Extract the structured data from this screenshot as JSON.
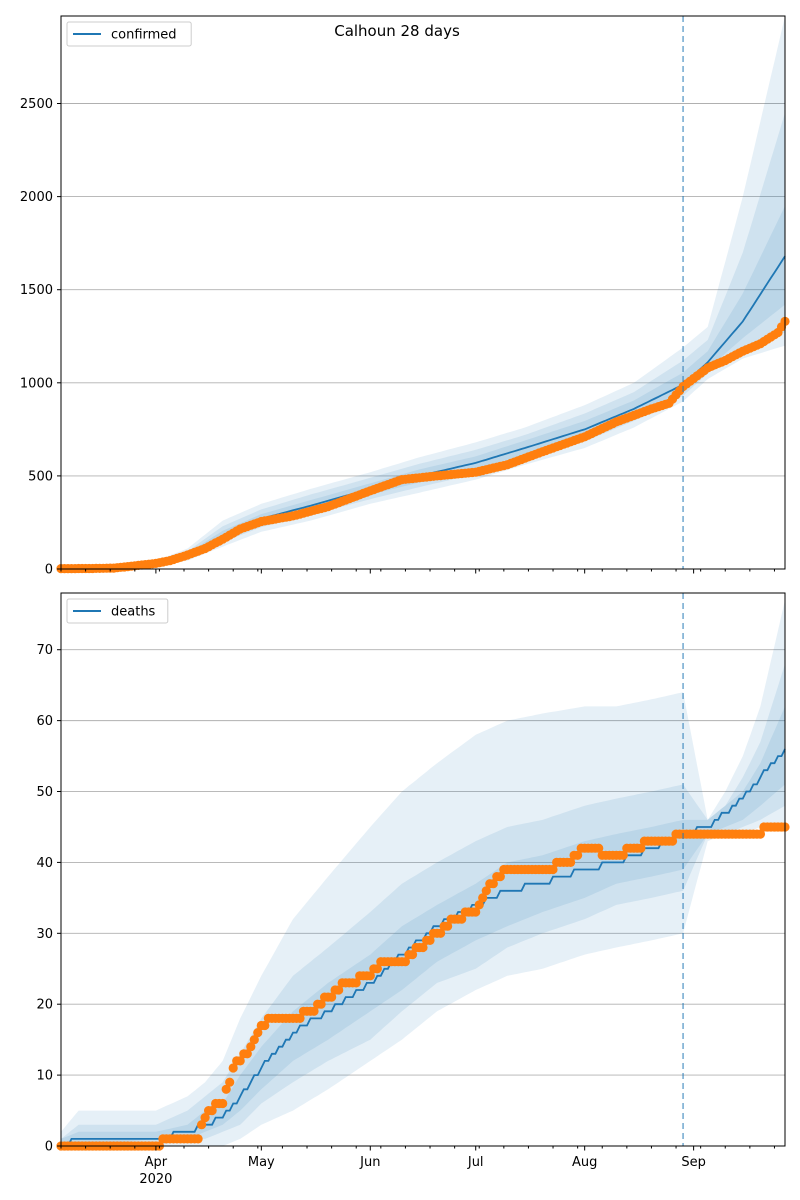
{
  "figure": {
    "title": "Calhoun 28 days"
  },
  "colors": {
    "model_line": "#1f77b4",
    "band": "#1f77b4",
    "observed": "#ff7f0e",
    "grid": "#b0b0b0",
    "forecast_marker": "#1f77b4"
  },
  "x_axis": {
    "start": "2020-03-05",
    "end": "2020-09-27",
    "forecast_start": "2020-08-29",
    "month_ticks": [
      {
        "date": "2020-04-01",
        "label": "Apr",
        "sublabel": "2020"
      },
      {
        "date": "2020-05-01",
        "label": "May",
        "sublabel": ""
      },
      {
        "date": "2020-06-01",
        "label": "Jun",
        "sublabel": ""
      },
      {
        "date": "2020-07-01",
        "label": "Jul",
        "sublabel": ""
      },
      {
        "date": "2020-08-01",
        "label": "Aug",
        "sublabel": ""
      },
      {
        "date": "2020-09-01",
        "label": "Sep",
        "sublabel": ""
      }
    ]
  },
  "chart_data": [
    {
      "type": "line",
      "title": "Calhoun 28 days",
      "legend": "confirmed",
      "legend_position": "top-left",
      "grid": "horizontal",
      "ylim": [
        0,
        2970
      ],
      "yticks": [
        0,
        500,
        1000,
        1500,
        2000,
        2500
      ],
      "model": {
        "x": [
          "2020-03-05",
          "2020-03-20",
          "2020-03-25",
          "2020-04-01",
          "2020-04-10",
          "2020-04-20",
          "2020-05-01",
          "2020-05-15",
          "2020-06-01",
          "2020-06-15",
          "2020-07-01",
          "2020-07-15",
          "2020-08-01",
          "2020-08-15",
          "2020-08-29",
          "2020-09-05",
          "2020-09-15",
          "2020-09-27"
        ],
        "y": [
          0,
          2,
          5,
          25,
          75,
          180,
          270,
          340,
          430,
          500,
          570,
          650,
          750,
          860,
          990,
          1110,
          1330,
          1680
        ]
      },
      "bands": [
        {
          "level": "outer",
          "lower": [
            0,
            0,
            0,
            10,
            45,
            120,
            200,
            260,
            350,
            410,
            480,
            560,
            650,
            760,
            900,
            1020,
            1130,
            1200
          ],
          "upper": [
            5,
            8,
            15,
            45,
            110,
            260,
            350,
            430,
            520,
            600,
            680,
            760,
            880,
            1000,
            1190,
            1300,
            2000,
            2970
          ]
        },
        {
          "level": "middle",
          "lower": [
            0,
            1,
            2,
            15,
            55,
            145,
            225,
            290,
            375,
            440,
            510,
            590,
            685,
            795,
            930,
            1050,
            1180,
            1270
          ],
          "upper": [
            3,
            5,
            10,
            38,
            95,
            230,
            320,
            400,
            490,
            565,
            640,
            720,
            835,
            950,
            1120,
            1230,
            1700,
            2450
          ]
        },
        {
          "level": "inner",
          "lower": [
            0,
            1,
            3,
            19,
            65,
            160,
            245,
            310,
            400,
            465,
            535,
            615,
            710,
            820,
            955,
            1075,
            1240,
            1420
          ],
          "upper": [
            2,
            4,
            8,
            32,
            85,
            205,
            295,
            370,
            460,
            535,
            605,
            690,
            795,
            905,
            1055,
            1170,
            1480,
            1950
          ]
        }
      ],
      "observed": {
        "x": [
          "2020-03-05",
          "2020-03-15",
          "2020-03-20",
          "2020-03-25",
          "2020-04-01",
          "2020-04-05",
          "2020-04-10",
          "2020-04-15",
          "2020-04-20",
          "2020-04-25",
          "2020-05-01",
          "2020-05-10",
          "2020-05-20",
          "2020-06-01",
          "2020-06-10",
          "2020-06-20",
          "2020-07-01",
          "2020-07-10",
          "2020-07-20",
          "2020-08-01",
          "2020-08-10",
          "2020-08-20",
          "2020-08-25",
          "2020-08-29",
          "2020-09-05",
          "2020-09-10",
          "2020-09-15",
          "2020-09-20",
          "2020-09-25",
          "2020-09-27"
        ],
        "y": [
          2,
          3,
          5,
          15,
          30,
          45,
          75,
          110,
          160,
          215,
          255,
          285,
          335,
          420,
          480,
          500,
          520,
          560,
          630,
          710,
          790,
          860,
          890,
          980,
          1080,
          1120,
          1170,
          1210,
          1270,
          1330
        ]
      }
    },
    {
      "type": "line",
      "legend": "deaths",
      "legend_position": "top-left",
      "grid": "horizontal",
      "ylim": [
        0,
        78
      ],
      "yticks": [
        0,
        10,
        20,
        30,
        40,
        50,
        60,
        70
      ],
      "model": {
        "x": [
          "2020-03-05",
          "2020-03-10",
          "2020-04-01",
          "2020-04-10",
          "2020-04-15",
          "2020-04-20",
          "2020-04-25",
          "2020-05-01",
          "2020-05-10",
          "2020-05-20",
          "2020-06-01",
          "2020-06-10",
          "2020-06-20",
          "2020-07-01",
          "2020-07-10",
          "2020-07-20",
          "2020-08-01",
          "2020-08-10",
          "2020-08-20",
          "2020-08-29",
          "2020-09-05",
          "2020-09-10",
          "2020-09-15",
          "2020-09-20",
          "2020-09-27"
        ],
        "y": [
          0,
          1,
          1,
          2,
          3,
          4,
          7,
          11,
          16,
          19,
          23,
          27,
          31,
          34,
          36,
          37,
          39,
          40,
          42,
          44,
          45,
          47,
          49,
          52,
          56
        ]
      },
      "bands": [
        {
          "level": "outer",
          "lower": [
            0,
            0,
            0,
            0,
            0,
            0,
            1,
            3,
            5,
            8,
            12,
            15,
            19,
            22,
            24,
            25,
            27,
            28,
            29,
            30,
            43,
            44,
            44,
            45,
            45
          ],
          "upper": [
            2,
            5,
            5,
            7,
            9,
            12,
            18,
            24,
            32,
            38,
            45,
            50,
            54,
            58,
            60,
            61,
            62,
            62,
            63,
            64,
            46,
            50,
            55,
            62,
            77
          ]
        },
        {
          "level": "middle",
          "lower": [
            0,
            0,
            0,
            1,
            1,
            2,
            3,
            6,
            9,
            12,
            15,
            19,
            23,
            25,
            28,
            30,
            32,
            34,
            35,
            36,
            44,
            44,
            45,
            46,
            48
          ],
          "upper": [
            1,
            3,
            3,
            5,
            7,
            9,
            13,
            18,
            24,
            28,
            33,
            37,
            40,
            43,
            45,
            46,
            48,
            49,
            50,
            51,
            46,
            48,
            52,
            57,
            68
          ]
        },
        {
          "level": "inner",
          "lower": [
            0,
            0,
            1,
            1,
            2,
            3,
            5,
            8,
            12,
            15,
            19,
            22,
            26,
            29,
            31,
            33,
            35,
            37,
            38,
            39,
            44,
            45,
            46,
            48,
            51
          ],
          "upper": [
            1,
            2,
            2,
            3,
            5,
            6,
            10,
            14,
            19,
            23,
            27,
            31,
            34,
            37,
            40,
            41,
            43,
            44,
            45,
            46,
            46,
            48,
            50,
            54,
            62
          ]
        }
      ],
      "observed": {
        "x": [
          "2020-03-05",
          "2020-04-01",
          "2020-04-05",
          "2020-04-10",
          "2020-04-13",
          "2020-04-15",
          "2020-04-18",
          "2020-04-20",
          "2020-04-23",
          "2020-04-25",
          "2020-04-28",
          "2020-05-01",
          "2020-05-05",
          "2020-05-10",
          "2020-05-15",
          "2020-05-20",
          "2020-05-25",
          "2020-06-01",
          "2020-06-05",
          "2020-06-10",
          "2020-06-15",
          "2020-06-20",
          "2020-06-25",
          "2020-07-01",
          "2020-07-05",
          "2020-07-08",
          "2020-07-10",
          "2020-07-20",
          "2020-07-28",
          "2020-08-01",
          "2020-08-10",
          "2020-08-15",
          "2020-08-20",
          "2020-08-25",
          "2020-08-29",
          "2020-09-05",
          "2020-09-20",
          "2020-09-22",
          "2020-09-27"
        ],
        "y": [
          0,
          0,
          1,
          1,
          1,
          4,
          6,
          6,
          11,
          12,
          14,
          17,
          18,
          18,
          19,
          21,
          23,
          24,
          26,
          26,
          28,
          30,
          32,
          33,
          37,
          38,
          39,
          39,
          40,
          42,
          41,
          42,
          43,
          43,
          44,
          44,
          44,
          45,
          45
        ]
      }
    }
  ]
}
